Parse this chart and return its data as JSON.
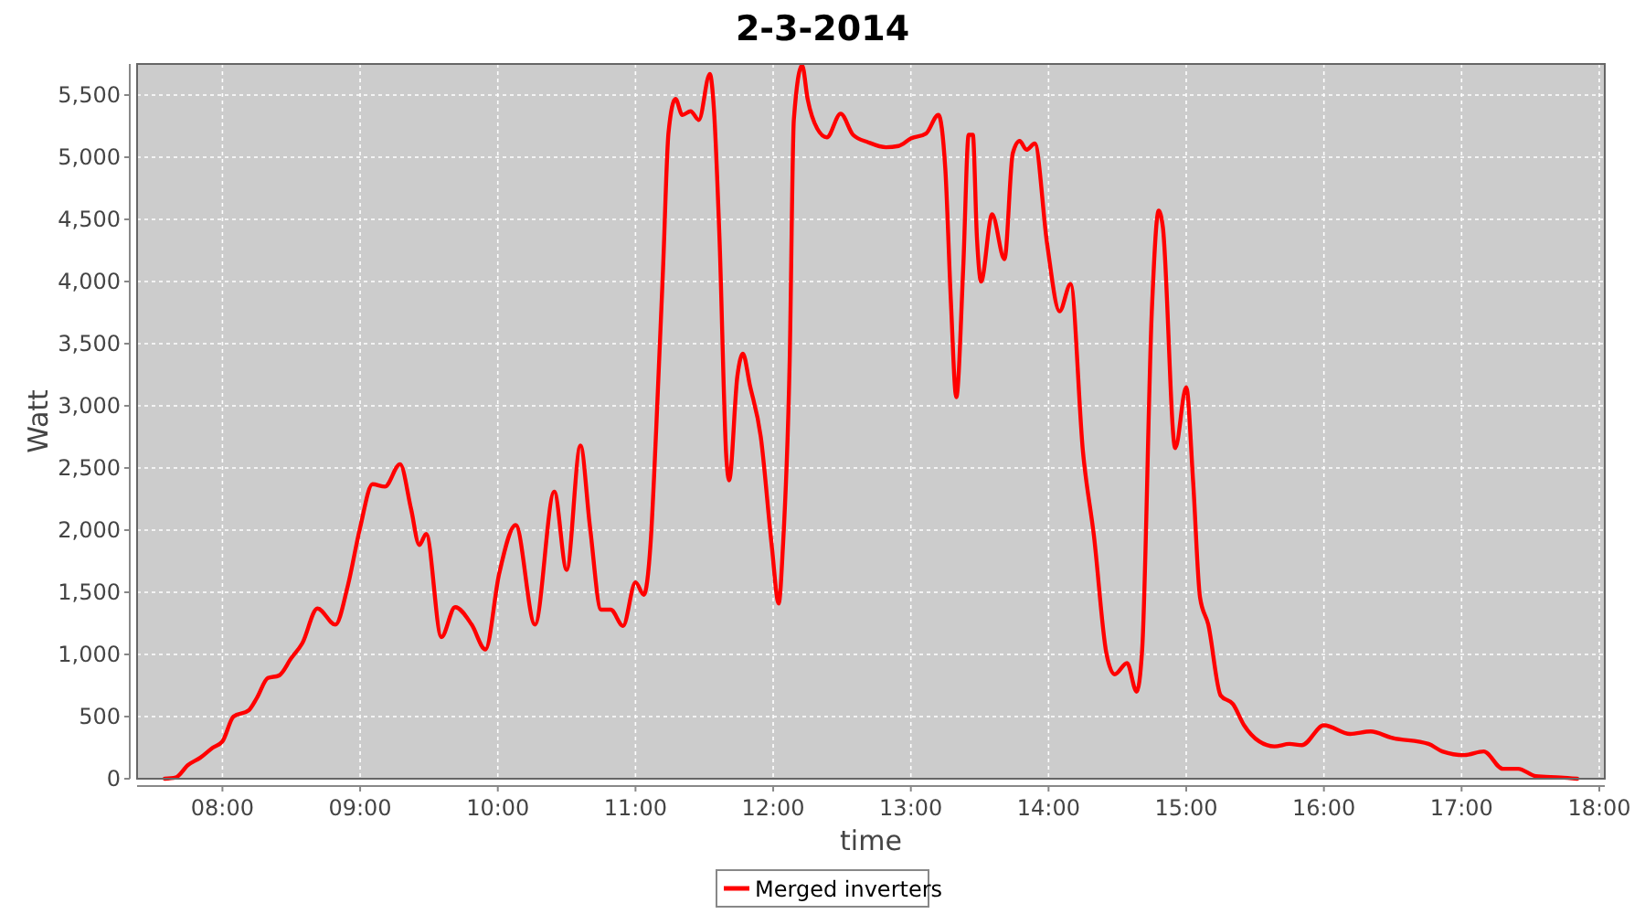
{
  "chart_data": {
    "type": "line",
    "title": "2-3-2014",
    "xlabel": "time",
    "ylabel": "Watt",
    "grid": true,
    "legend": "bottom",
    "marker": "none",
    "line_style": "solid",
    "xlim": [
      7.38,
      18.04
    ],
    "ylim": [
      0,
      5750
    ],
    "xticks": [
      {
        "value": 8,
        "label": "08:00"
      },
      {
        "value": 9,
        "label": "09:00"
      },
      {
        "value": 10,
        "label": "10:00"
      },
      {
        "value": 11,
        "label": "11:00"
      },
      {
        "value": 12,
        "label": "12:00"
      },
      {
        "value": 13,
        "label": "13:00"
      },
      {
        "value": 14,
        "label": "14:00"
      },
      {
        "value": 15,
        "label": "15:00"
      },
      {
        "value": 16,
        "label": "16:00"
      },
      {
        "value": 17,
        "label": "17:00"
      },
      {
        "value": 18,
        "label": "18:00"
      }
    ],
    "yticks": [
      0,
      500,
      {
        "value": 1000,
        "label": "1,000"
      },
      {
        "value": 1500,
        "label": "1,500"
      },
      {
        "value": 2000,
        "label": "2,000"
      },
      {
        "value": 2500,
        "label": "2,500"
      },
      {
        "value": 3000,
        "label": "3,000"
      },
      {
        "value": 3500,
        "label": "3,500"
      },
      {
        "value": 4000,
        "label": "4,000"
      },
      {
        "value": 4500,
        "label": "4,500"
      },
      {
        "value": 5000,
        "label": "5,000"
      },
      {
        "value": 5500,
        "label": "5,500"
      }
    ],
    "series": [
      {
        "name": "Merged inverters",
        "color": "#ff0000",
        "x": [
          7.58,
          7.66,
          7.75,
          7.84,
          7.93,
          8.0,
          8.08,
          8.19,
          8.25,
          8.33,
          8.41,
          8.5,
          8.58,
          8.69,
          8.82,
          8.91,
          9.0,
          9.09,
          9.18,
          9.29,
          9.37,
          9.43,
          9.48,
          9.59,
          9.69,
          9.81,
          9.91,
          10.01,
          10.13,
          10.27,
          10.41,
          10.5,
          10.6,
          10.67,
          10.75,
          10.82,
          10.91,
          11.0,
          11.06,
          11.11,
          11.15,
          11.2,
          11.24,
          11.29,
          11.34,
          11.4,
          11.46,
          11.54,
          11.57,
          11.61,
          11.66,
          11.68,
          11.74,
          11.78,
          11.83,
          11.91,
          11.99,
          12.04,
          12.07,
          12.12,
          12.15,
          12.21,
          12.25,
          12.32,
          12.39,
          12.49,
          12.58,
          12.69,
          12.82,
          12.91,
          13.0,
          13.11,
          13.2,
          13.25,
          13.29,
          13.33,
          13.38,
          13.42,
          13.45,
          13.48,
          13.51,
          13.59,
          13.68,
          13.74,
          13.79,
          13.84,
          13.9,
          13.99,
          14.08,
          14.16,
          14.25,
          14.33,
          14.42,
          14.48,
          14.57,
          14.64,
          14.68,
          14.75,
          14.8,
          14.83,
          14.92,
          15.0,
          15.05,
          15.1,
          15.16,
          15.25,
          15.34,
          15.42,
          15.53,
          15.64,
          15.75,
          15.84,
          16.0,
          16.19,
          16.34,
          16.49,
          16.76,
          16.86,
          17.02,
          17.16,
          17.3,
          17.41,
          17.54,
          17.72,
          17.84
        ],
        "values": [
          0,
          10,
          110,
          170,
          250,
          300,
          500,
          550,
          650,
          810,
          830,
          970,
          1090,
          1370,
          1240,
          1550,
          2020,
          2370,
          2350,
          2530,
          2170,
          1880,
          1970,
          1140,
          1380,
          1240,
          1040,
          1650,
          2040,
          1240,
          2310,
          1680,
          2680,
          2020,
          1360,
          1360,
          1230,
          1580,
          1480,
          1900,
          2800,
          4100,
          5200,
          5470,
          5340,
          5370,
          5300,
          5670,
          5380,
          4350,
          2580,
          2400,
          3240,
          3420,
          3170,
          2750,
          1870,
          1410,
          1850,
          3370,
          5300,
          5740,
          5470,
          5230,
          5160,
          5350,
          5180,
          5120,
          5080,
          5090,
          5150,
          5190,
          5340,
          4910,
          3860,
          3070,
          4100,
          5180,
          5180,
          4350,
          4000,
          4540,
          4180,
          5030,
          5130,
          5060,
          5110,
          4300,
          3760,
          3980,
          2630,
          1950,
          1010,
          840,
          930,
          700,
          1040,
          3760,
          4570,
          4440,
          2660,
          3150,
          2390,
          1460,
          1240,
          670,
          600,
          430,
          300,
          260,
          280,
          270,
          430,
          360,
          380,
          330,
          280,
          220,
          190,
          220,
          80,
          80,
          20,
          10,
          0
        ]
      }
    ]
  }
}
